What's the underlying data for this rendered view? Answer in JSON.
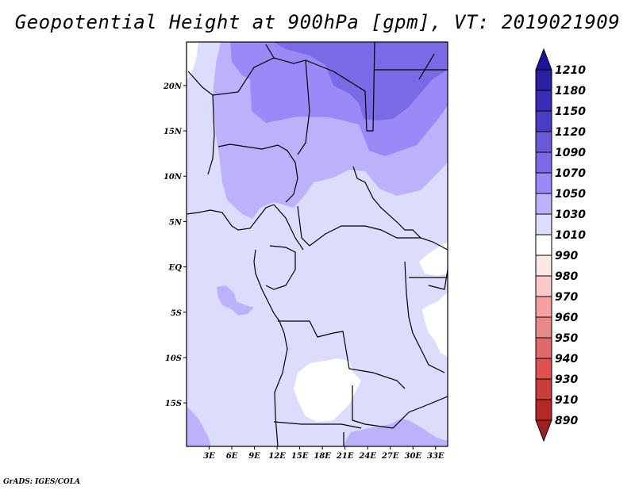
{
  "title": "Geopotential Height at 900hPa [gpm], VT: 2019021909",
  "credit": "GrADS: IGES/COLA",
  "map": {
    "lat_labels": [
      "20N",
      "15N",
      "10N",
      "5N",
      "EQ",
      "5S",
      "10S",
      "15S"
    ],
    "lat_values": [
      20,
      15,
      10,
      5,
      0,
      -5,
      -10,
      -15
    ],
    "lon_labels": [
      "3E",
      "6E",
      "9E",
      "12E",
      "15E",
      "18E",
      "21E",
      "24E",
      "27E",
      "30E",
      "33E"
    ],
    "lon_values": [
      3,
      6,
      9,
      12,
      15,
      18,
      21,
      24,
      27,
      30,
      33
    ],
    "lat_range": [
      -19.8,
      24.8
    ],
    "lon_range": [
      0,
      34.6
    ]
  },
  "colorbar": {
    "labels": [
      "1210",
      "1180",
      "1150",
      "1120",
      "1090",
      "1070",
      "1050",
      "1030",
      "1010",
      "990",
      "980",
      "970",
      "960",
      "950",
      "940",
      "930",
      "910",
      "890"
    ],
    "box_colors": [
      "#2a1fa0",
      "#3a2cb6",
      "#4a3cc8",
      "#6a5ad8",
      "#7b6ae6",
      "#9a8af8",
      "#bcb2fc",
      "#dcdcfc",
      "#ffffff",
      "#fde6e6",
      "#fcc8c8",
      "#f8a0a0",
      "#e88888",
      "#e06a6a",
      "#e05050",
      "#c83c3c",
      "#b42828"
    ],
    "top_arrow_color": "#2010a0",
    "bottom_arrow_color": "#a02020"
  },
  "fill_colors": {
    "c1010": "#dcdcfc",
    "c1030": "#bcb2fc",
    "c1050": "#9a8af8",
    "c1070": "#7b6ae6",
    "c990": "#ffffff"
  }
}
